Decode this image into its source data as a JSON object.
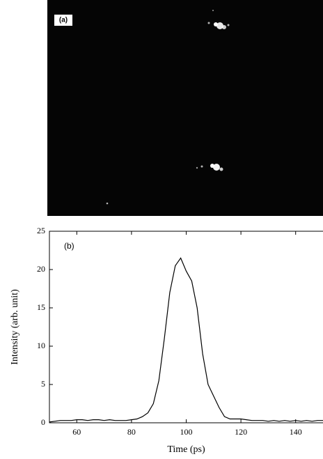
{
  "panel_a": {
    "label": "(a)"
  },
  "chart_data": {
    "type": "line",
    "annotation": "(b)",
    "xlabel": "Time (ps)",
    "ylabel": "Intensity (arb. unit)",
    "xlim": [
      50,
      150
    ],
    "ylim": [
      0,
      25
    ],
    "xticks": [
      60,
      80,
      100,
      120,
      140
    ],
    "yticks": [
      0,
      5,
      10,
      15,
      20,
      25
    ],
    "x": [
      50,
      52,
      54,
      56,
      58,
      60,
      62,
      64,
      66,
      68,
      70,
      72,
      74,
      76,
      78,
      80,
      82,
      84,
      86,
      88,
      90,
      92,
      94,
      96,
      98,
      100,
      102,
      104,
      106,
      108,
      110,
      112,
      114,
      116,
      118,
      120,
      122,
      124,
      126,
      128,
      130,
      132,
      134,
      136,
      138,
      140,
      142,
      144,
      146,
      148,
      150
    ],
    "series": [
      {
        "color": "#000000",
        "values": [
          0.1,
          0.2,
          0.3,
          0.3,
          0.3,
          0.4,
          0.4,
          0.3,
          0.4,
          0.4,
          0.3,
          0.4,
          0.3,
          0.3,
          0.3,
          0.4,
          0.5,
          0.8,
          1.3,
          2.5,
          5.5,
          11,
          17,
          20.5,
          21.5,
          19.8,
          18.5,
          15,
          9,
          5,
          3.5,
          2,
          0.8,
          0.5,
          0.5,
          0.5,
          0.4,
          0.3,
          0.3,
          0.3,
          0.2,
          0.3,
          0.2,
          0.3,
          0.2,
          0.3,
          0.2,
          0.3,
          0.2,
          0.3,
          0.3
        ]
      }
    ]
  }
}
